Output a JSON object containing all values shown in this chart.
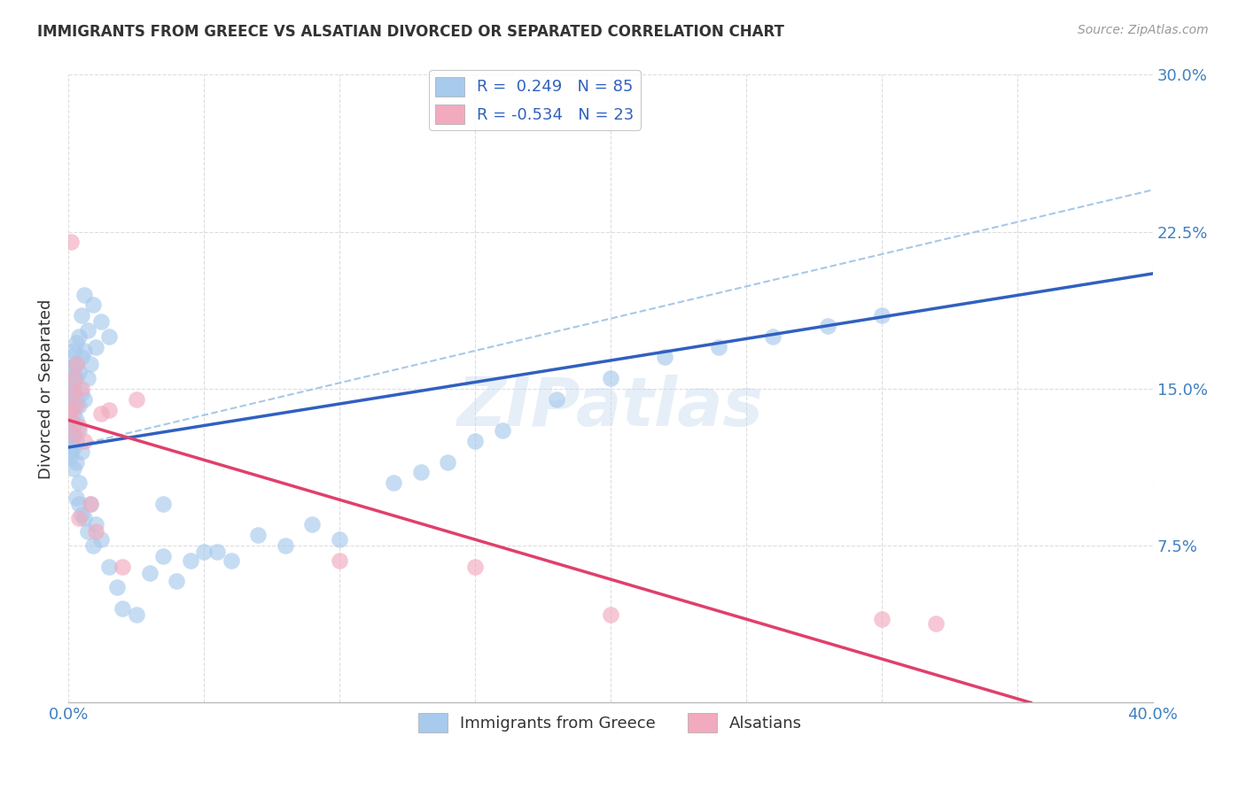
{
  "title": "IMMIGRANTS FROM GREECE VS ALSATIAN DIVORCED OR SEPARATED CORRELATION CHART",
  "source": "Source: ZipAtlas.com",
  "ylabel": "Divorced or Separated",
  "xlim": [
    0.0,
    0.4
  ],
  "ylim": [
    0.0,
    0.3
  ],
  "xticks": [
    0.0,
    0.05,
    0.1,
    0.15,
    0.2,
    0.25,
    0.3,
    0.35,
    0.4
  ],
  "yticks": [
    0.0,
    0.075,
    0.15,
    0.225,
    0.3
  ],
  "xtick_labels": [
    "0.0%",
    "",
    "",
    "",
    "",
    "",
    "",
    "",
    "40.0%"
  ],
  "ytick_labels_right": [
    "",
    "7.5%",
    "15.0%",
    "22.5%",
    "30.0%"
  ],
  "color_blue": "#A8CAEC",
  "color_pink": "#F2AABE",
  "color_line_blue": "#3060C0",
  "color_line_pink": "#E0406A",
  "color_line_dashed": "#A8C8E8",
  "watermark": "ZIPatlas",
  "background_color": "#FFFFFF",
  "grid_color": "#DDDDDD",
  "blue_line_x0": 0.0,
  "blue_line_y0": 0.122,
  "blue_line_x1": 0.4,
  "blue_line_y1": 0.205,
  "pink_line_x0": 0.0,
  "pink_line_y0": 0.135,
  "pink_line_x1": 0.355,
  "pink_line_y1": 0.0,
  "dashed_line_x0": 0.0,
  "dashed_line_y0": 0.122,
  "dashed_line_x1": 0.4,
  "dashed_line_y1": 0.245,
  "blue_points_x": [
    0.001,
    0.001,
    0.001,
    0.001,
    0.001,
    0.001,
    0.001,
    0.001,
    0.001,
    0.001,
    0.002,
    0.002,
    0.002,
    0.002,
    0.002,
    0.002,
    0.002,
    0.002,
    0.002,
    0.002,
    0.003,
    0.003,
    0.003,
    0.003,
    0.003,
    0.003,
    0.003,
    0.003,
    0.004,
    0.004,
    0.004,
    0.004,
    0.004,
    0.004,
    0.005,
    0.005,
    0.005,
    0.005,
    0.005,
    0.006,
    0.006,
    0.006,
    0.006,
    0.007,
    0.007,
    0.007,
    0.008,
    0.008,
    0.009,
    0.009,
    0.01,
    0.01,
    0.012,
    0.012,
    0.015,
    0.015,
    0.018,
    0.02,
    0.025,
    0.03,
    0.035,
    0.04,
    0.05,
    0.06,
    0.07,
    0.08,
    0.09,
    0.1,
    0.12,
    0.13,
    0.14,
    0.15,
    0.16,
    0.18,
    0.2,
    0.22,
    0.24,
    0.26,
    0.28,
    0.3,
    0.035,
    0.045,
    0.055
  ],
  "blue_points_y": [
    0.145,
    0.155,
    0.13,
    0.165,
    0.12,
    0.135,
    0.15,
    0.125,
    0.16,
    0.118,
    0.148,
    0.138,
    0.158,
    0.128,
    0.168,
    0.122,
    0.142,
    0.132,
    0.152,
    0.112,
    0.162,
    0.145,
    0.155,
    0.135,
    0.172,
    0.115,
    0.125,
    0.098,
    0.175,
    0.158,
    0.142,
    0.13,
    0.105,
    0.095,
    0.185,
    0.165,
    0.148,
    0.12,
    0.09,
    0.195,
    0.168,
    0.145,
    0.088,
    0.178,
    0.155,
    0.082,
    0.162,
    0.095,
    0.19,
    0.075,
    0.17,
    0.085,
    0.182,
    0.078,
    0.175,
    0.065,
    0.055,
    0.045,
    0.042,
    0.062,
    0.07,
    0.058,
    0.072,
    0.068,
    0.08,
    0.075,
    0.085,
    0.078,
    0.105,
    0.11,
    0.115,
    0.125,
    0.13,
    0.145,
    0.155,
    0.165,
    0.17,
    0.175,
    0.18,
    0.185,
    0.095,
    0.068,
    0.072
  ],
  "pink_points_x": [
    0.001,
    0.001,
    0.001,
    0.002,
    0.002,
    0.002,
    0.003,
    0.003,
    0.004,
    0.004,
    0.005,
    0.006,
    0.008,
    0.01,
    0.012,
    0.015,
    0.02,
    0.025,
    0.1,
    0.15,
    0.2,
    0.3,
    0.32
  ],
  "pink_points_y": [
    0.14,
    0.22,
    0.135,
    0.155,
    0.128,
    0.148,
    0.162,
    0.142,
    0.132,
    0.088,
    0.15,
    0.125,
    0.095,
    0.082,
    0.138,
    0.14,
    0.065,
    0.145,
    0.068,
    0.065,
    0.042,
    0.04,
    0.038
  ]
}
